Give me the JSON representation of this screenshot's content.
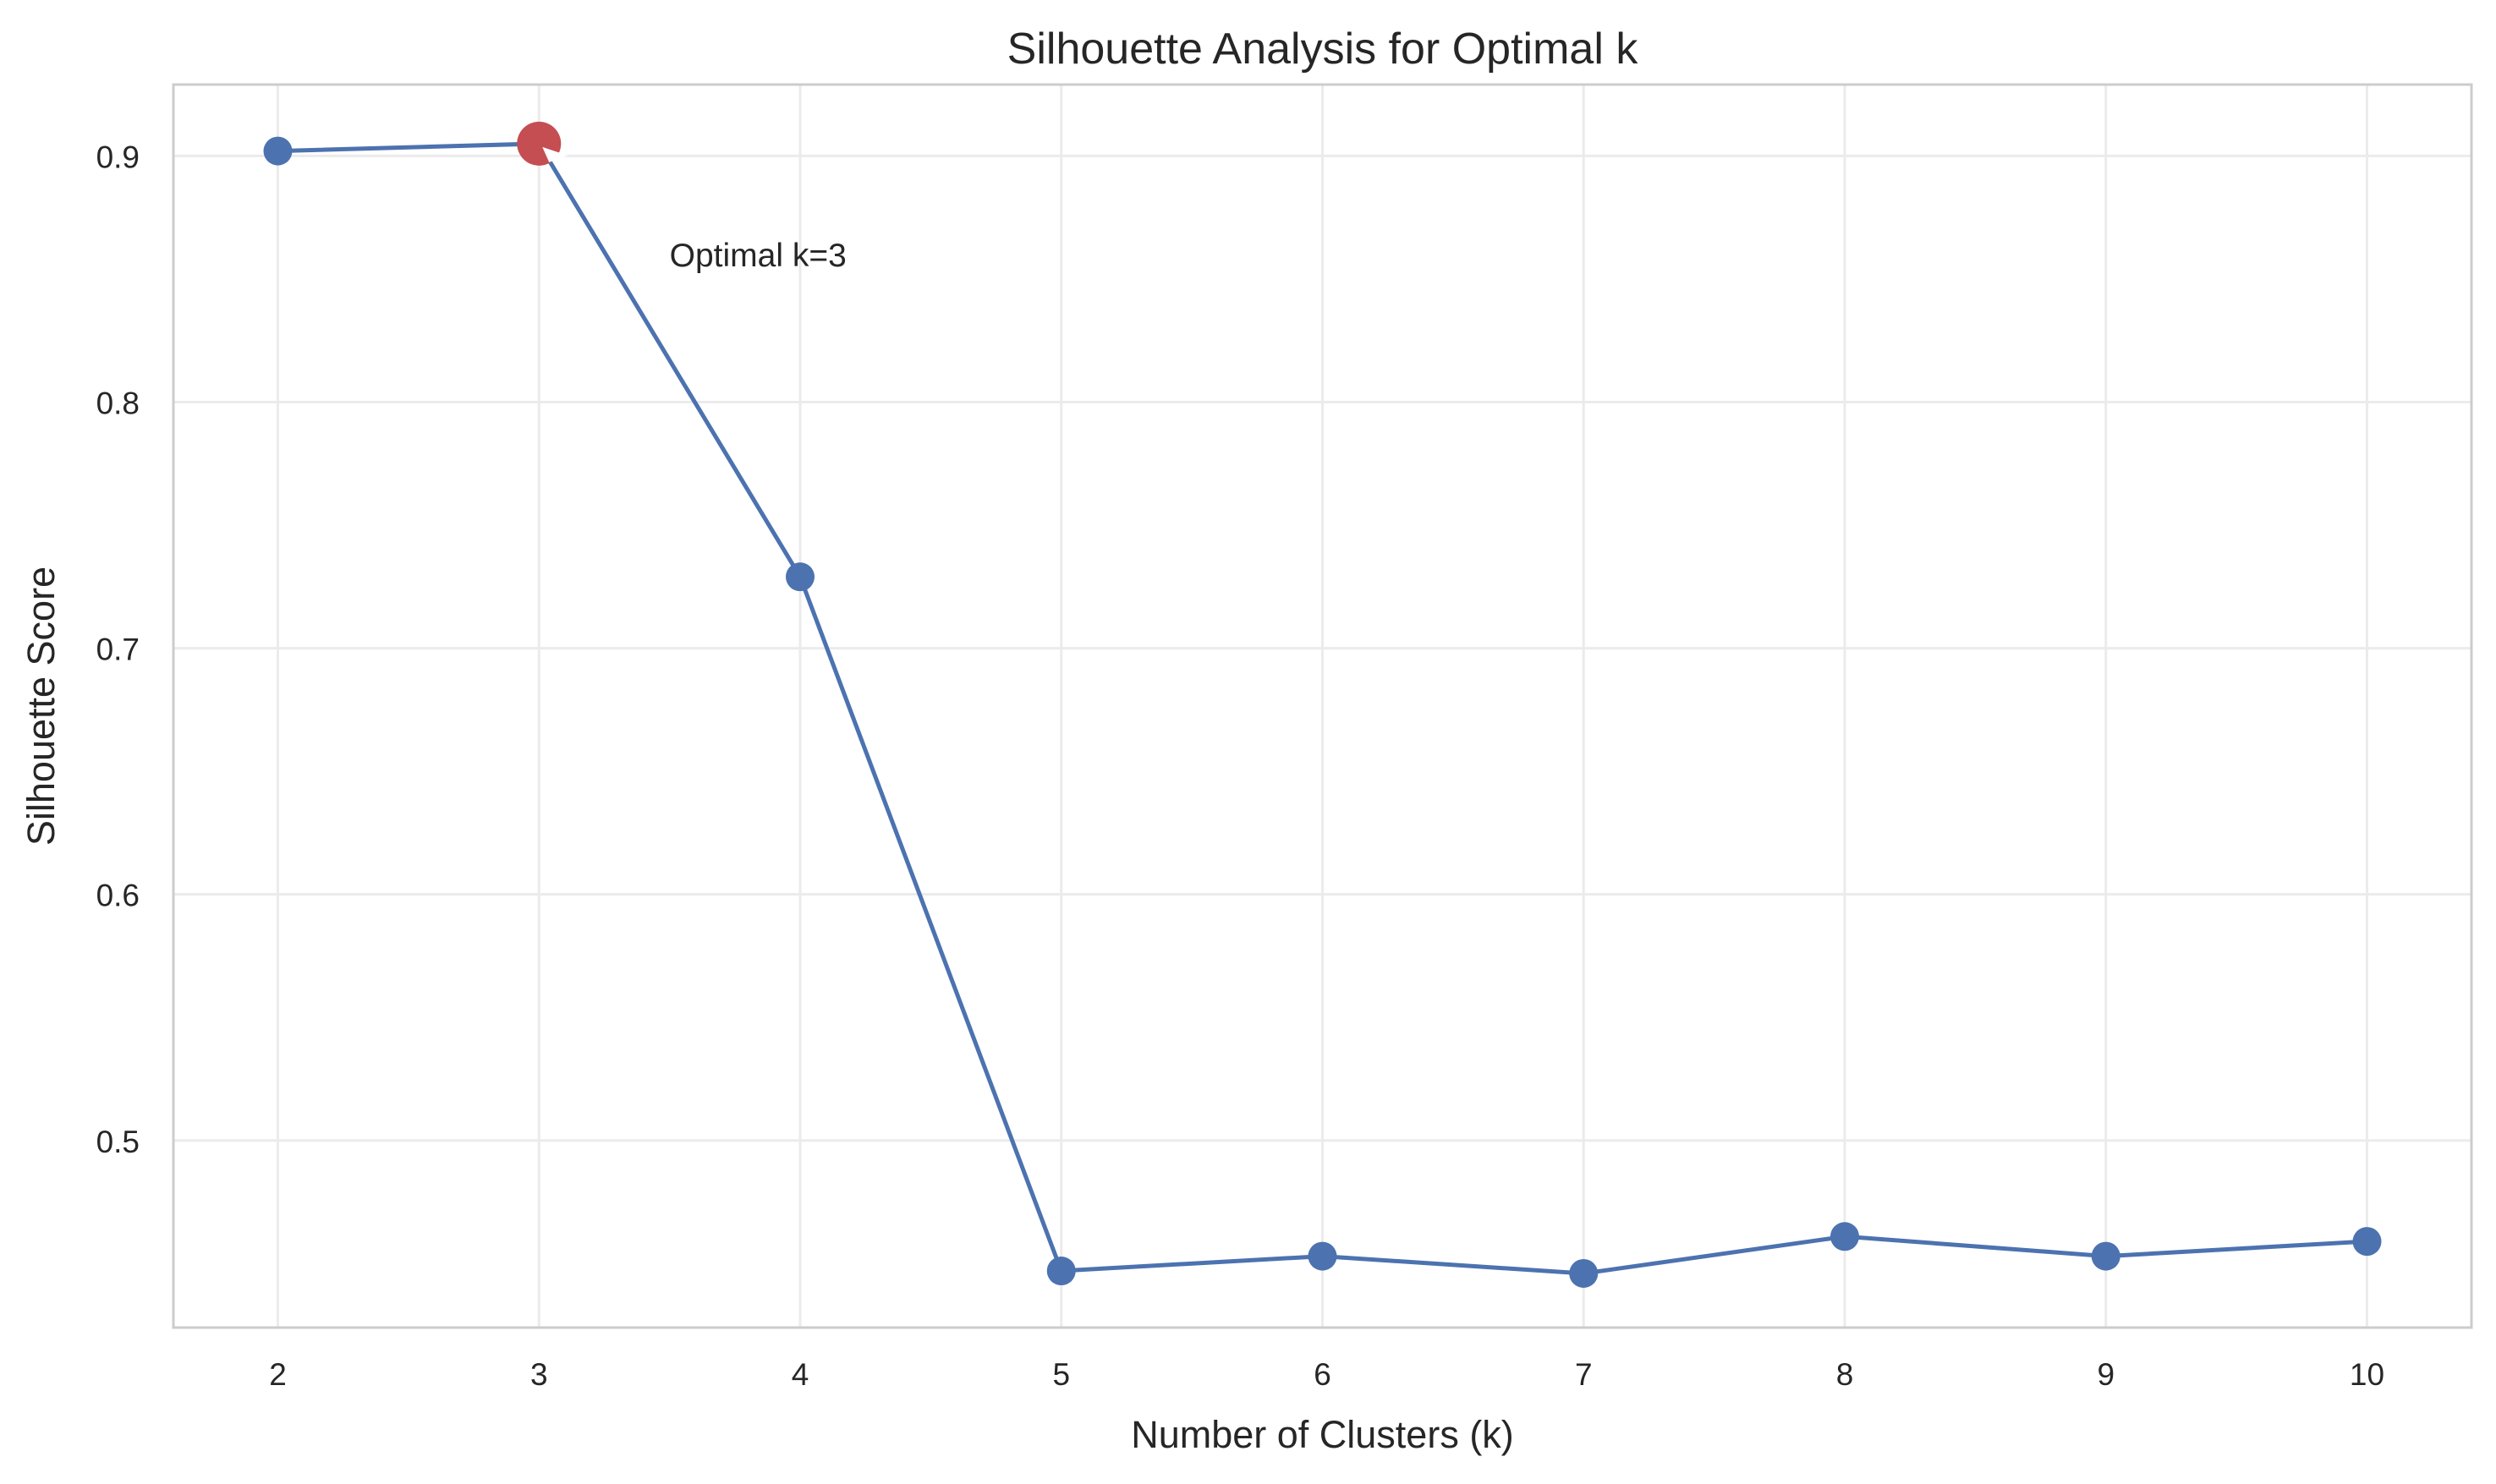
{
  "chart_data": {
    "type": "line",
    "title": "Silhouette Analysis for Optimal k",
    "xlabel": "Number of Clusters (k)",
    "ylabel": "Silhouette Score",
    "x": [
      2,
      3,
      4,
      5,
      6,
      7,
      8,
      9,
      10
    ],
    "series": [
      {
        "values": [
          0.902,
          0.905,
          0.729,
          0.447,
          0.453,
          0.446,
          0.461,
          0.453,
          0.459
        ]
      }
    ],
    "xlim": [
      1.6,
      10.4
    ],
    "ylim": [
      0.424,
      0.929
    ],
    "xticks": [
      "2",
      "3",
      "4",
      "5",
      "6",
      "7",
      "8",
      "9",
      "10"
    ],
    "yticks": [
      "0.5",
      "0.6",
      "0.7",
      "0.8",
      "0.9"
    ],
    "grid": true,
    "highlight": {
      "x": 3,
      "y": 0.905,
      "color": "#c44e52"
    },
    "annotation": {
      "text": "Optimal k=3",
      "x": 3.5,
      "y": 0.86
    },
    "line_color": "#4c72b0",
    "marker_color": "#4c72b0"
  }
}
